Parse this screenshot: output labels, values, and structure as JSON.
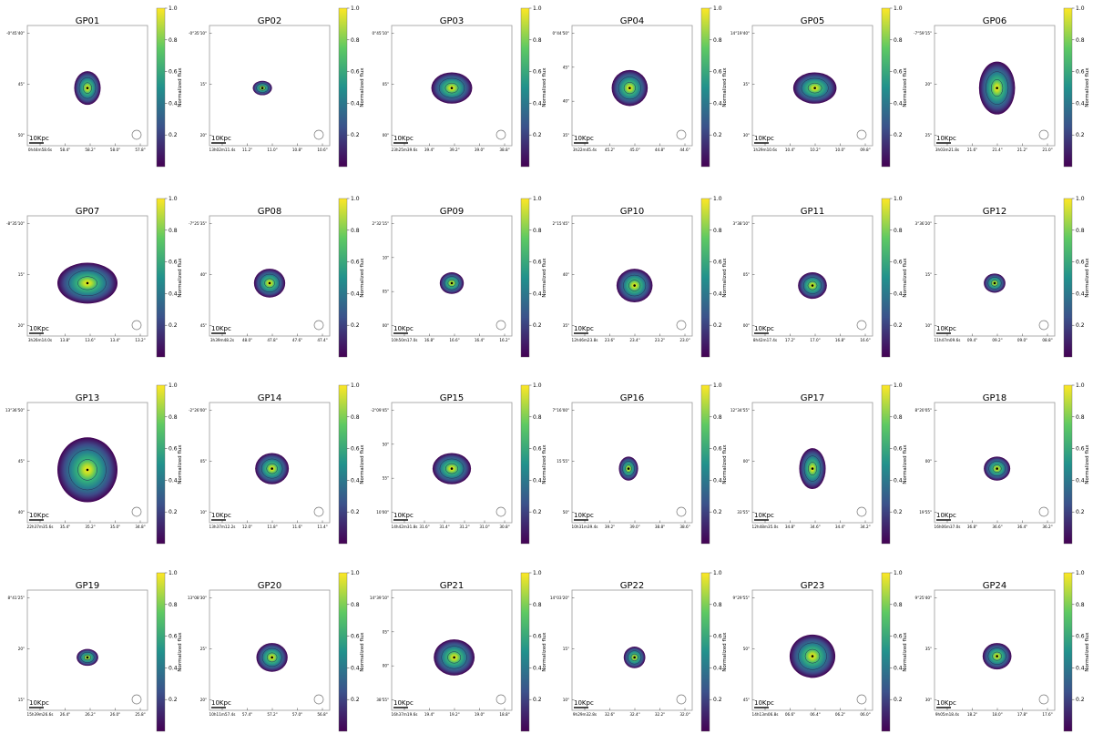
{
  "colorbar": {
    "label": "Normalized flux",
    "ticks": [
      "0.2",
      "0.4",
      "0.6",
      "0.8",
      "1.0"
    ],
    "ticks_compact": [
      "0.2",
      "0.4",
      "0.6",
      "0.8"
    ],
    "colormap": "viridis",
    "stops": [
      "#440154",
      "#3b528b",
      "#21918c",
      "#5ec962",
      "#fde725"
    ]
  },
  "scalebar_label": "10Kpc",
  "chart_data": [
    {
      "type": "heatmap",
      "title": "GP01",
      "yticks": [
        "-0°45'40\"",
        "45\"",
        "50\""
      ],
      "xticks": [
        "0h44m58.6s",
        "58.4\"",
        "58.2\"",
        "58.0\"",
        "57.8\""
      ]
    },
    {
      "type": "heatmap",
      "title": "GP02",
      "yticks": [
        "-0°35'10\"",
        "15\"",
        "20\""
      ],
      "xticks": [
        "13h02m11.4s",
        "11.2\"",
        "11.0\"",
        "10.8\"",
        "10.6\""
      ]
    },
    {
      "type": "heatmap",
      "title": "GP03",
      "yticks": [
        "0°45'10\"",
        "05\"",
        "00\""
      ],
      "xticks": [
        "23h25m39.6s",
        "39.4\"",
        "39.2\"",
        "39.0\"",
        "38.8\""
      ]
    },
    {
      "type": "heatmap",
      "title": "GP04",
      "yticks": [
        "0°44'50\"",
        "45\"",
        "40\"",
        "35\""
      ],
      "xticks": [
        "3h22m45.4s",
        "45.2\"",
        "45.0\"",
        "44.8\"",
        "44.6\""
      ]
    },
    {
      "type": "heatmap",
      "title": "GP05",
      "yticks": [
        "14°19'40\"",
        "35\"",
        "30\""
      ],
      "xticks": [
        "1h29m10.6s",
        "10.4\"",
        "10.2\"",
        "10.0\"",
        "09.8\""
      ]
    },
    {
      "type": "heatmap",
      "title": "GP06",
      "yticks": [
        "-7°59'15\"",
        "20\"",
        "25\""
      ],
      "xticks": [
        "3h03m21.8s",
        "21.6\"",
        "21.4\"",
        "21.2\"",
        "21.0\""
      ]
    },
    {
      "type": "heatmap",
      "title": "GP07",
      "yticks": [
        "-8°35'10\"",
        "15\"",
        "20\""
      ],
      "xticks": [
        "3h26m14.0s",
        "13.8\"",
        "13.6\"",
        "13.4\"",
        "13.2\""
      ]
    },
    {
      "type": "heatmap",
      "title": "GP08",
      "yticks": [
        "-7°25'35\"",
        "40\"",
        "45\""
      ],
      "xticks": [
        "3h39m48.2s",
        "48.0\"",
        "47.8\"",
        "47.6\"",
        "47.4\""
      ]
    },
    {
      "type": "heatmap",
      "title": "GP09",
      "yticks": [
        "2°32'15\"",
        "10\"",
        "05\"",
        "00\""
      ],
      "xticks": [
        "10h50m17.0s",
        "16.8\"",
        "16.6\"",
        "16.4\"",
        "16.2\""
      ]
    },
    {
      "type": "heatmap",
      "title": "GP10",
      "yticks": [
        "2°15'45\"",
        "40\"",
        "35\""
      ],
      "xticks": [
        "12h46m23.8s",
        "23.6\"",
        "23.4\"",
        "23.2\"",
        "23.0\""
      ]
    },
    {
      "type": "heatmap",
      "title": "GP11",
      "yticks": [
        "3°38'10\"",
        "05\"",
        "00\""
      ],
      "xticks": [
        "8h42m17.4s",
        "17.2\"",
        "17.0\"",
        "16.8\"",
        "16.6\""
      ]
    },
    {
      "type": "heatmap",
      "title": "GP12",
      "yticks": [
        "3°36'20\"",
        "15\"",
        "10\""
      ],
      "xticks": [
        "11h47m09.6s",
        "09.4\"",
        "09.2\"",
        "09.0\"",
        "08.8\""
      ]
    },
    {
      "type": "heatmap",
      "title": "GP13",
      "yticks": [
        "13°36'50\"",
        "45\"",
        "40\""
      ],
      "xticks": [
        "22h37m35.6s",
        "35.4\"",
        "35.2\"",
        "35.0\"",
        "34.8\""
      ]
    },
    {
      "type": "heatmap",
      "title": "GP14",
      "yticks": [
        "-2°26'00\"",
        "05\"",
        "10\""
      ],
      "xticks": [
        "13h37m12.2s",
        "12.0\"",
        "11.8\"",
        "11.6\"",
        "11.4\""
      ]
    },
    {
      "type": "heatmap",
      "title": "GP15",
      "yticks": [
        "-2°09'45\"",
        "50\"",
        "55\"",
        "10'00\""
      ],
      "xticks": [
        "14h42m31.8s",
        "31.6\"",
        "31.4\"",
        "31.2\"",
        "31.0\"",
        "30.8\""
      ]
    },
    {
      "type": "heatmap",
      "title": "GP16",
      "yticks": [
        "7°16'00\"",
        "15'55\"",
        "50\""
      ],
      "xticks": [
        "10h31m39.4s",
        "39.2\"",
        "39.0\"",
        "38.8\"",
        "38.6\""
      ]
    },
    {
      "type": "heatmap",
      "title": "GP17",
      "yticks": [
        "12°34'55\"",
        "00\"",
        "33'55\""
      ],
      "xticks": [
        "12h48m35.0s",
        "34.8\"",
        "34.6\"",
        "34.4\"",
        "34.2\""
      ]
    },
    {
      "type": "heatmap",
      "title": "GP18",
      "yticks": [
        "8°20'05\"",
        "00\"",
        "19'55\""
      ],
      "xticks": [
        "16h06m37.0s",
        "36.8\"",
        "36.6\"",
        "36.4\"",
        "36.2\""
      ]
    },
    {
      "type": "heatmap",
      "title": "GP19",
      "yticks": [
        "8°41'25\"",
        "20\"",
        "15\""
      ],
      "xticks": [
        "15h39m26.6s",
        "26.4\"",
        "26.2\"",
        "26.0\"",
        "25.8\""
      ]
    },
    {
      "type": "heatmap",
      "title": "GP20",
      "yticks": [
        "13°08'30\"",
        "25\"",
        "20\""
      ],
      "xticks": [
        "10h11m57.4s",
        "57.4\"",
        "57.2\"",
        "57.0\"",
        "56.8\""
      ]
    },
    {
      "type": "heatmap",
      "title": "GP21",
      "yticks": [
        "14°39'10\"",
        "05\"",
        "00\"",
        "38'55\""
      ],
      "xticks": [
        "16h37m19.6s",
        "19.4\"",
        "19.2\"",
        "19.0\"",
        "18.8\""
      ]
    },
    {
      "type": "heatmap",
      "title": "GP22",
      "yticks": [
        "14°03'20\"",
        "15\"",
        "10\""
      ],
      "xticks": [
        "9h29m32.8s",
        "32.6\"",
        "32.4\"",
        "32.2\"",
        "32.0\""
      ]
    },
    {
      "type": "heatmap",
      "title": "GP23",
      "yticks": [
        "9°29'55\"",
        "50\"",
        "45\""
      ],
      "xticks": [
        "14h13m06.8s",
        "06.6\"",
        "06.4\"",
        "06.2\"",
        "06.0\""
      ]
    },
    {
      "type": "heatmap",
      "title": "GP24",
      "yticks": [
        "9°25'40\"",
        "35\"",
        "30\""
      ],
      "xticks": [
        "9h05m18.4s",
        "18.2\"",
        "18.0\"",
        "17.8\"",
        "17.6\""
      ]
    }
  ]
}
